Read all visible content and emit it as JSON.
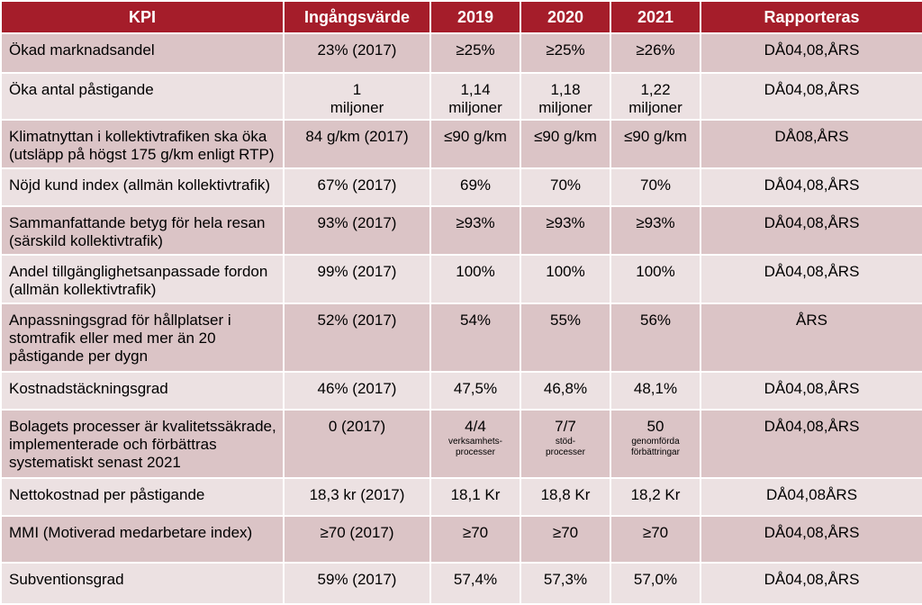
{
  "headers": [
    "KPI",
    "Ingångsvärde",
    "2019",
    "2020",
    "2021",
    "Rapporteras"
  ],
  "rows": [
    {
      "kpi": "Ökad marknadsandel",
      "start": "23% (2017)",
      "y2019": "≥25%",
      "y2020": "≥25%",
      "y2021": "≥26%",
      "report": "DÅ04,08,ÅRS"
    },
    {
      "kpi": "Öka antal påstigande",
      "start": "1\nmiljoner",
      "y2019": "1,14\nmiljoner",
      "y2020": "1,18\nmiljoner",
      "y2021": "1,22\nmiljoner",
      "report": "DÅ04,08,ÅRS"
    },
    {
      "kpi": "Klimatnyttan i kollektivtrafiken ska öka (utsläpp på högst 175 g/km enligt RTP)",
      "start": "84 g/km (2017)",
      "y2019": "≤90 g/km",
      "y2020": "≤90 g/km",
      "y2021": "≤90 g/km",
      "report": "DÅ08,ÅRS"
    },
    {
      "kpi": "Nöjd kund index (allmän kollektivtrafik)",
      "start": "67% (2017)",
      "y2019": "69%",
      "y2020": "70%",
      "y2021": "70%",
      "report": "DÅ04,08,ÅRS"
    },
    {
      "kpi": "Sammanfattande betyg för hela resan (särskild kollektivtrafik)",
      "start": "93% (2017)",
      "y2019": "≥93%",
      "y2020": "≥93%",
      "y2021": "≥93%",
      "report": "DÅ04,08,ÅRS"
    },
    {
      "kpi": "Andel tillgänglighetsanpassade fordon (allmän kollektivtrafik)",
      "start": "99% (2017)",
      "y2019": "100%",
      "y2020": "100%",
      "y2021": "100%",
      "report": "DÅ04,08,ÅRS"
    },
    {
      "kpi": "Anpassningsgrad för hållplatser i stomtrafik eller med mer än 20 påstigande per dygn",
      "start": "52% (2017)",
      "y2019": "54%",
      "y2020": "55%",
      "y2021": "56%",
      "report": "ÅRS"
    },
    {
      "kpi": "Kostnadstäckningsgrad",
      "start": "46% (2017)",
      "y2019": "47,5%",
      "y2020": "46,8%",
      "y2021": "48,1%",
      "report": "DÅ04,08,ÅRS"
    },
    {
      "kpi": "Bolagets processer är kvalitetssäkrade, implementerade och förbättras systematiskt senast 2021",
      "start": "0 (2017)",
      "y2019": "4/4",
      "y2019_sub": "verksamhets-\nprocesser",
      "y2020": "7/7",
      "y2020_sub": "stöd-\nprocesser",
      "y2021": "50",
      "y2021_sub": "genomförda\nförbättringar",
      "report": "DÅ04,08,ÅRS"
    },
    {
      "kpi": "Nettokostnad per påstigande",
      "start": "18,3 kr (2017)",
      "y2019": "18,1 Kr",
      "y2020": "18,8 Kr",
      "y2021": "18,2 Kr",
      "report": "DÅ04,08ÅRS"
    },
    {
      "kpi": "MMI (Motiverad medarbetare index)",
      "start": "≥70 (2017)",
      "y2019": "≥70",
      "y2020": "≥70",
      "y2021": "≥70",
      "report": "DÅ04,08,ÅRS"
    },
    {
      "kpi": "Subventionsgrad",
      "start": "59% (2017)",
      "y2019": "57,4%",
      "y2020": "57,3%",
      "y2021": "57,0%",
      "report": "DÅ04,08,ÅRS"
    }
  ],
  "colors": {
    "header": "#a51d2a",
    "row_dark": "#dbc4c6",
    "row_light": "#ece1e2"
  }
}
